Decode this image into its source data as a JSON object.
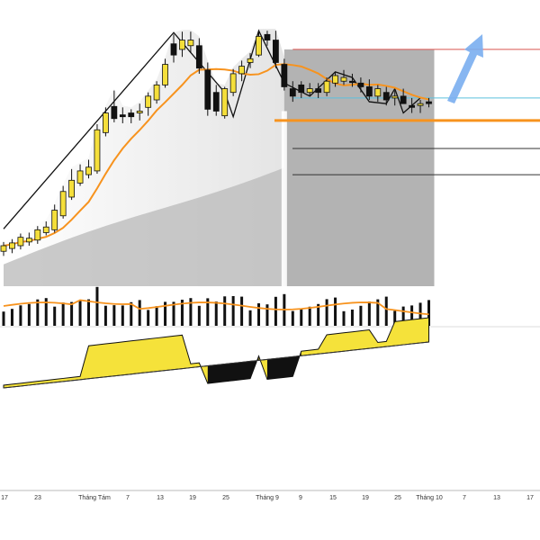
{
  "chart_data": [
    {
      "type": "candlestick",
      "panel": "price",
      "x_labels": [
        "17",
        "23",
        "Tháng Tám",
        "7",
        "13",
        "19",
        "25",
        "Tháng 9",
        "9",
        "15",
        "19",
        "25",
        "Tháng 10",
        "7",
        "13",
        "17"
      ],
      "price_candles": [
        {
          "o": 7.0,
          "h": 8.0,
          "l": 6.5,
          "c": 7.6,
          "up": true
        },
        {
          "o": 7.3,
          "h": 8.3,
          "l": 6.8,
          "c": 7.9,
          "up": true
        },
        {
          "o": 7.6,
          "h": 8.9,
          "l": 7.2,
          "c": 8.5,
          "up": true
        },
        {
          "o": 8.0,
          "h": 9.0,
          "l": 7.6,
          "c": 8.4,
          "up": true
        },
        {
          "o": 8.2,
          "h": 9.7,
          "l": 7.8,
          "c": 9.3,
          "up": true
        },
        {
          "o": 9.0,
          "h": 10.2,
          "l": 8.7,
          "c": 9.6,
          "up": true
        },
        {
          "o": 9.3,
          "h": 12.0,
          "l": 9.0,
          "c": 11.4,
          "up": true
        },
        {
          "o": 10.8,
          "h": 14.0,
          "l": 10.5,
          "c": 13.4,
          "up": true
        },
        {
          "o": 12.8,
          "h": 15.8,
          "l": 12.5,
          "c": 14.6,
          "up": true
        },
        {
          "o": 14.3,
          "h": 16.3,
          "l": 14.0,
          "c": 15.6,
          "up": true
        },
        {
          "o": 15.2,
          "h": 16.8,
          "l": 14.8,
          "c": 16.0,
          "up": true
        },
        {
          "o": 15.6,
          "h": 20.6,
          "l": 15.3,
          "c": 20.0,
          "up": true
        },
        {
          "o": 19.7,
          "h": 22.4,
          "l": 19.3,
          "c": 21.8,
          "up": true
        },
        {
          "o": 22.5,
          "h": 24.2,
          "l": 20.8,
          "c": 21.2,
          "up": false
        },
        {
          "o": 21.6,
          "h": 22.4,
          "l": 20.7,
          "c": 21.4,
          "up": false
        },
        {
          "o": 21.4,
          "h": 22.2,
          "l": 20.7,
          "c": 21.8,
          "up": false
        },
        {
          "o": 21.8,
          "h": 22.8,
          "l": 21.0,
          "c": 22.0,
          "up": true
        },
        {
          "o": 22.4,
          "h": 24.0,
          "l": 21.5,
          "c": 23.6,
          "up": true
        },
        {
          "o": 23.2,
          "h": 25.2,
          "l": 22.8,
          "c": 24.8,
          "up": true
        },
        {
          "o": 24.8,
          "h": 27.6,
          "l": 24.5,
          "c": 27.0,
          "up": true
        },
        {
          "o": 28.0,
          "h": 30.2,
          "l": 27.2,
          "c": 29.2,
          "up": false
        },
        {
          "o": 29.6,
          "h": 30.5,
          "l": 27.8,
          "c": 28.6,
          "up": true
        },
        {
          "o": 29.0,
          "h": 30.5,
          "l": 28.2,
          "c": 29.6,
          "up": true
        },
        {
          "o": 29.0,
          "h": 29.8,
          "l": 26.0,
          "c": 26.6,
          "up": false
        },
        {
          "o": 26.4,
          "h": 27.2,
          "l": 21.5,
          "c": 22.2,
          "up": false
        },
        {
          "o": 22.0,
          "h": 24.8,
          "l": 21.5,
          "c": 24.0,
          "up": false
        },
        {
          "o": 21.5,
          "h": 24.6,
          "l": 21.2,
          "c": 24.4,
          "up": true
        },
        {
          "o": 24.0,
          "h": 26.5,
          "l": 23.6,
          "c": 26.0,
          "up": true
        },
        {
          "o": 26.0,
          "h": 27.4,
          "l": 25.2,
          "c": 26.8,
          "up": true
        },
        {
          "o": 27.2,
          "h": 28.2,
          "l": 26.6,
          "c": 27.6,
          "up": true
        },
        {
          "o": 28.0,
          "h": 30.6,
          "l": 27.8,
          "c": 30.0,
          "up": true
        },
        {
          "o": 30.2,
          "h": 30.6,
          "l": 29.0,
          "c": 29.6,
          "up": false
        },
        {
          "o": 29.6,
          "h": 30.6,
          "l": 26.6,
          "c": 27.2,
          "up": false
        },
        {
          "o": 27.0,
          "h": 27.6,
          "l": 24.2,
          "c": 24.6,
          "up": false
        },
        {
          "o": 24.4,
          "h": 25.2,
          "l": 23.0,
          "c": 23.6,
          "up": false
        },
        {
          "o": 24.0,
          "h": 25.2,
          "l": 23.4,
          "c": 24.8,
          "up": false
        },
        {
          "o": 24.4,
          "h": 25.0,
          "l": 23.6,
          "c": 24.0,
          "up": true
        },
        {
          "o": 24.0,
          "h": 25.0,
          "l": 23.4,
          "c": 24.4,
          "up": false
        },
        {
          "o": 24.0,
          "h": 25.6,
          "l": 23.6,
          "c": 25.2,
          "up": true
        },
        {
          "o": 25.0,
          "h": 26.2,
          "l": 24.6,
          "c": 25.8,
          "up": true
        },
        {
          "o": 25.2,
          "h": 26.4,
          "l": 24.8,
          "c": 25.6,
          "up": true
        },
        {
          "o": 25.2,
          "h": 26.0,
          "l": 24.6,
          "c": 25.2,
          "up": false
        },
        {
          "o": 25.0,
          "h": 25.6,
          "l": 24.0,
          "c": 24.6,
          "up": false
        },
        {
          "o": 24.6,
          "h": 25.4,
          "l": 23.2,
          "c": 23.6,
          "up": false
        },
        {
          "o": 23.6,
          "h": 24.8,
          "l": 23.0,
          "c": 24.4,
          "up": true
        },
        {
          "o": 24.0,
          "h": 24.6,
          "l": 22.6,
          "c": 23.2,
          "up": false
        },
        {
          "o": 23.4,
          "h": 24.2,
          "l": 22.6,
          "c": 23.6,
          "up": true
        },
        {
          "o": 23.6,
          "h": 24.4,
          "l": 22.8,
          "c": 22.8,
          "up": false
        },
        {
          "o": 22.4,
          "h": 23.4,
          "l": 21.8,
          "c": 22.6,
          "up": false
        },
        {
          "o": 22.6,
          "h": 23.2,
          "l": 21.8,
          "c": 22.8,
          "up": true
        },
        {
          "o": 22.8,
          "h": 23.4,
          "l": 22.4,
          "c": 23.0,
          "up": false
        }
      ],
      "ma_line_color": "#f7931e",
      "volume_ma_color": "#f7931e",
      "horizontal_levels": [
        {
          "value": 28.6,
          "color": "#d9534f",
          "style": "thin"
        },
        {
          "value": 23.4,
          "color": "#5bc0de",
          "style": "thin"
        },
        {
          "value": 21.0,
          "color": "#f7931e",
          "style": "thick"
        },
        {
          "value": 18.0,
          "color": "#333333",
          "style": "thin"
        },
        {
          "value": 15.2,
          "color": "#333333",
          "style": "thin"
        }
      ],
      "forecast_arrow_color": "#7aaef0",
      "up_color": "#f5df3b",
      "down_color": "#111111"
    },
    {
      "type": "area",
      "panel": "oscillator",
      "fill_color": "#f5e23a",
      "neg_color": "#111111"
    }
  ]
}
